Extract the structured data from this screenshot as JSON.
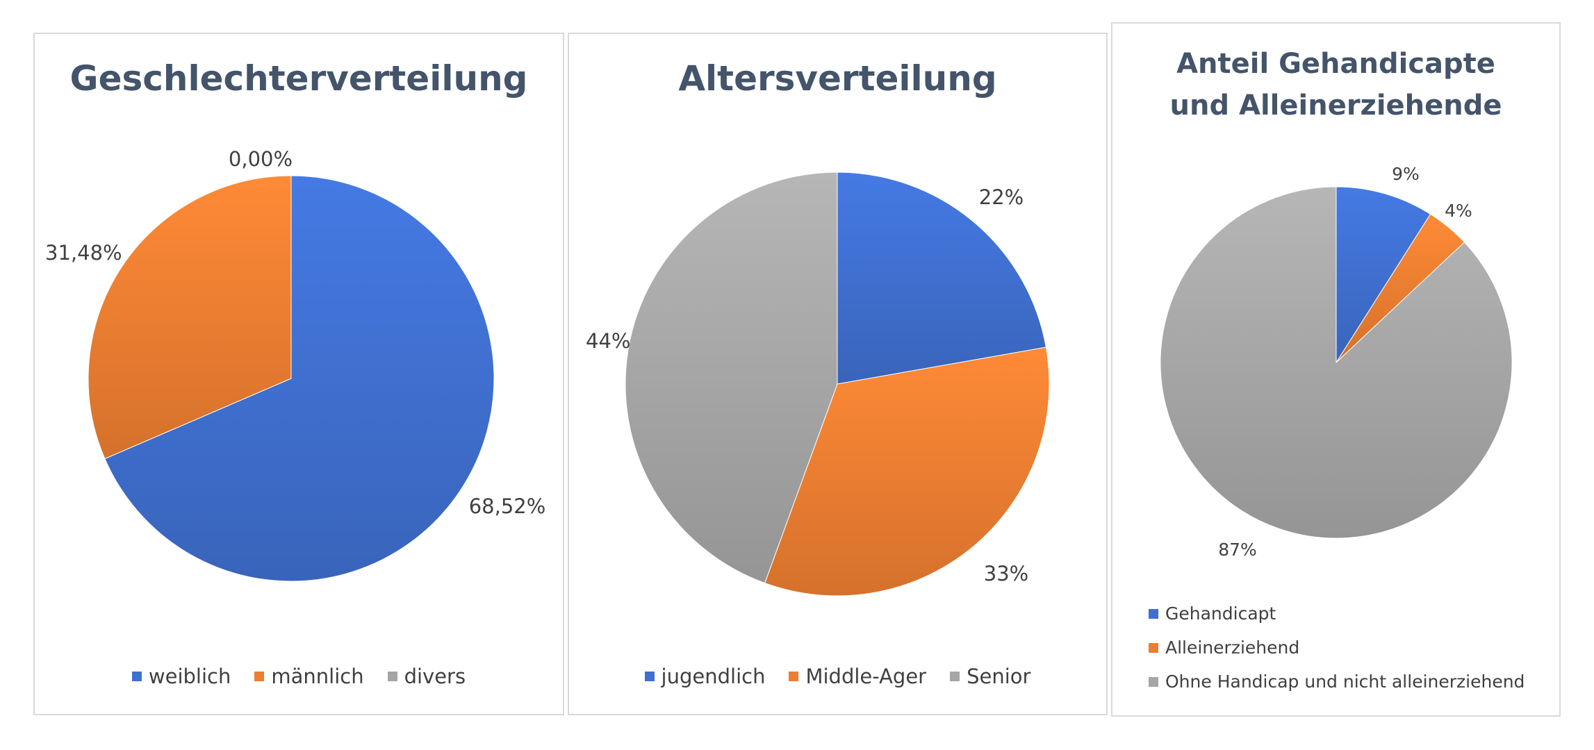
{
  "chart_data": [
    {
      "type": "pie",
      "title": "Geschlechterverteilung",
      "categories": [
        "weiblich",
        "männlich",
        "divers"
      ],
      "values": [
        68.52,
        31.48,
        0.0
      ],
      "data_labels": [
        "68,52%",
        "31,48%",
        "0,00%"
      ],
      "colors": [
        "#3f6fcf",
        "#ed7d31",
        "#a5a5a5"
      ],
      "legend": "bottom"
    },
    {
      "type": "pie",
      "title": "Altersverteilung",
      "categories": [
        "jugendlich",
        "Middle-Ager",
        "Senior"
      ],
      "values": [
        22,
        33,
        44
      ],
      "data_labels": [
        "22%",
        "33%",
        "44%"
      ],
      "colors": [
        "#3f6fcf",
        "#ed7d31",
        "#a5a5a5"
      ],
      "legend": "bottom"
    },
    {
      "type": "pie",
      "title": "Anteil Gehandicapte und Alleinerziehende",
      "title_lines": [
        "Anteil Gehandicapte",
        "und Alleinerziehende"
      ],
      "categories": [
        "Gehandicapt",
        "Alleinerziehend",
        "Ohne Handicap und nicht alleinerziehend"
      ],
      "values": [
        9,
        4,
        87
      ],
      "data_labels": [
        "9%",
        "4%",
        "87%"
      ],
      "colors": [
        "#3f6fcf",
        "#ed7d31",
        "#a5a5a5"
      ],
      "legend": "bottom"
    }
  ]
}
